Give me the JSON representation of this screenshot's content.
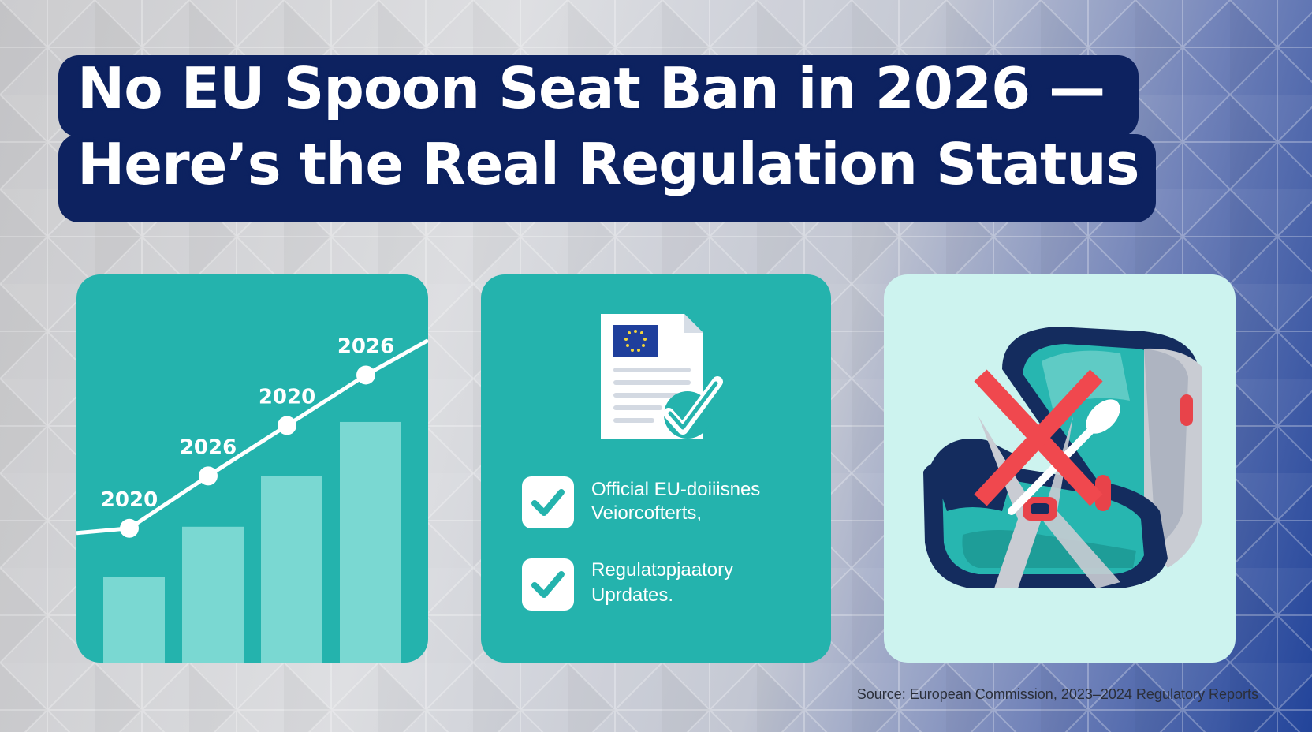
{
  "title": {
    "line1": "No EU Spoon Seat Ban in 2026 —",
    "line2": "Here’s the Real Regulation Status"
  },
  "chart_card": {
    "point_labels": [
      "2020",
      "2026",
      "2020",
      "2026"
    ],
    "bar_levels": [
      0.22,
      0.35,
      0.48,
      0.62
    ],
    "line_levels": [
      0.285,
      0.42,
      0.55,
      0.68
    ],
    "colors": {
      "card": "#24b3ad",
      "bar": "#7ad8d2",
      "line": "#ffffff"
    }
  },
  "docs_card": {
    "document_icon": "eu-flag-document-with-check-icon",
    "items": [
      {
        "icon": "checkbox-checked-icon",
        "line1": "Official EU-doiiisnes",
        "line2": "Veiorcofterts,"
      },
      {
        "icon": "checkbox-checked-icon",
        "line1": "Regulatɔpjaatory",
        "line2": "Uprdates."
      }
    ]
  },
  "seat_card": {
    "icon": "car-seat-with-spoon-crossed-out-icon",
    "colors": {
      "card": "#cdf3ef",
      "cross": "#f0484e",
      "seat_dark": "#142c5e",
      "seat_teal": "#27b6b0"
    }
  },
  "source": "Source: European Commission, 2023–2024 Regulatory Reports"
}
